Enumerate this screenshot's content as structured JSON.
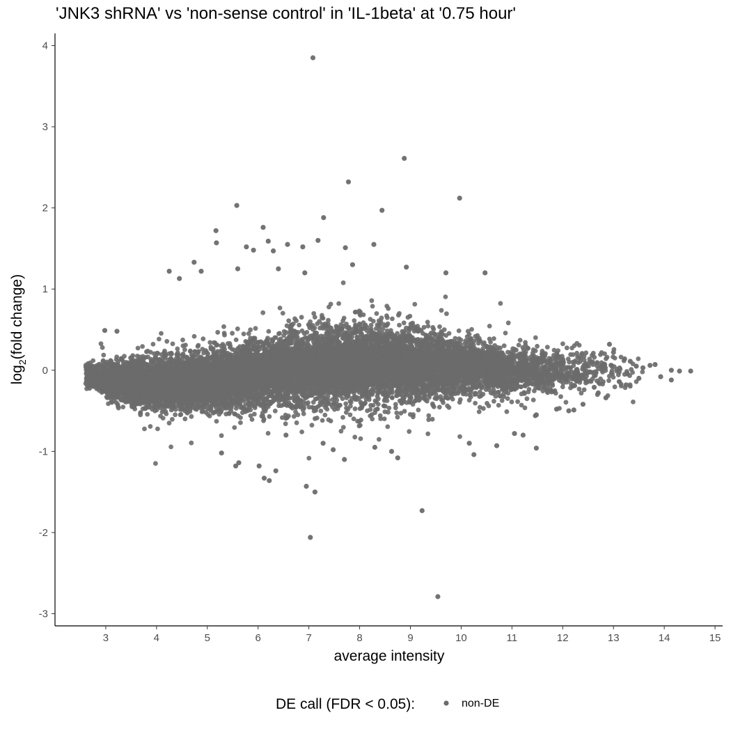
{
  "chart_data": {
    "type": "scatter",
    "title": "'JNK3 shRNA' vs 'non-sense control' in 'IL-1beta' at '0.75 hour'",
    "xlabel": "average intensity",
    "ylabel_main": "log",
    "ylabel_sub": "2",
    "ylabel_rest": "(fold change)",
    "xlim": [
      2,
      15.15
    ],
    "ylim": [
      -3.15,
      4.15
    ],
    "x_ticks": [
      "3",
      "4",
      "5",
      "6",
      "7",
      "8",
      "9",
      "10",
      "11",
      "12",
      "13",
      "14",
      "15"
    ],
    "y_ticks": [
      "-3",
      "-2",
      "-1",
      "0",
      "1",
      "2",
      "3",
      "4"
    ],
    "grid": false,
    "point_color": "#6b6b6b",
    "legend": {
      "title": "DE call (FDR < 0.05):",
      "position": "bottom",
      "entries": [
        {
          "label": "non-DE",
          "color": "#6b6b6b"
        }
      ]
    },
    "series": [
      {
        "name": "non-DE",
        "points": [
          [
            7.08,
            3.85
          ],
          [
            8.88,
            2.61
          ],
          [
            7.78,
            2.32
          ],
          [
            9.97,
            2.12
          ],
          [
            5.58,
            2.03
          ],
          [
            8.44,
            1.97
          ],
          [
            7.29,
            1.88
          ],
          [
            6.1,
            1.76
          ],
          [
            5.17,
            1.72
          ],
          [
            7.18,
            1.6
          ],
          [
            6.2,
            1.59
          ],
          [
            5.18,
            1.57
          ],
          [
            8.28,
            1.55
          ],
          [
            6.58,
            1.55
          ],
          [
            5.77,
            1.52
          ],
          [
            6.88,
            1.52
          ],
          [
            7.72,
            1.51
          ],
          [
            5.91,
            1.48
          ],
          [
            6.3,
            1.47
          ],
          [
            4.74,
            1.33
          ],
          [
            7.86,
            1.3
          ],
          [
            5.6,
            1.25
          ],
          [
            6.4,
            1.25
          ],
          [
            8.92,
            1.27
          ],
          [
            4.25,
            1.22
          ],
          [
            4.88,
            1.22
          ],
          [
            10.47,
            1.2
          ],
          [
            9.7,
            1.2
          ],
          [
            4.45,
            1.13
          ],
          [
            6.92,
            1.2
          ],
          [
            2.98,
            0.49
          ],
          [
            3.22,
            0.48
          ],
          [
            5.28,
            -1.02
          ],
          [
            5.56,
            -1.18
          ],
          [
            5.62,
            -1.14
          ],
          [
            6.02,
            -1.18
          ],
          [
            6.12,
            -1.33
          ],
          [
            6.22,
            -1.36
          ],
          [
            6.35,
            -1.24
          ],
          [
            6.95,
            -1.43
          ],
          [
            7.12,
            -1.5
          ],
          [
            7.03,
            -2.06
          ],
          [
            9.23,
            -1.73
          ],
          [
            9.54,
            -2.79
          ],
          [
            7.28,
            -0.9
          ],
          [
            7.48,
            -0.98
          ],
          [
            7.7,
            -1.1
          ],
          [
            8.3,
            -0.95
          ],
          [
            8.63,
            -1.0
          ],
          [
            8.75,
            -1.08
          ],
          [
            10.16,
            -0.9
          ],
          [
            10.25,
            -1.04
          ],
          [
            11.05,
            -0.78
          ],
          [
            11.22,
            -0.8
          ],
          [
            10.7,
            -0.93
          ],
          [
            11.48,
            -0.96
          ],
          [
            6.55,
            -0.8
          ],
          [
            12.92,
            0.32
          ],
          [
            13.0,
            0.22
          ],
          [
            13.22,
            0.14
          ],
          [
            13.33,
            0.11
          ],
          [
            13.45,
            0.05
          ],
          [
            13.58,
            0.03
          ],
          [
            13.72,
            0.06
          ],
          [
            13.82,
            0.07
          ],
          [
            13.93,
            -0.08
          ],
          [
            14.14,
            0.0
          ],
          [
            14.3,
            -0.01
          ],
          [
            14.52,
            -0.01
          ],
          [
            14.14,
            -0.12
          ],
          [
            13.5,
            -0.1
          ],
          [
            13.25,
            -0.18
          ],
          [
            12.7,
            -0.28
          ],
          [
            12.85,
            -0.34
          ],
          [
            12.62,
            -0.21
          ],
          [
            12.12,
            -0.5
          ],
          [
            12.22,
            -0.49
          ],
          [
            12.4,
            -0.42
          ],
          [
            11.48,
            -0.55
          ],
          [
            11.88,
            -0.48
          ]
        ],
        "density_model": {
          "description": "Dense non-DE cloud; center band (mean log2FC) and spread (sd) per average intensity",
          "n_points": 13000,
          "x_range": [
            2.6,
            13.6
          ],
          "mean_curve": [
            [
              2.6,
              -0.05
            ],
            [
              3.0,
              -0.12
            ],
            [
              4.0,
              -0.17
            ],
            [
              5.0,
              -0.13
            ],
            [
              6.0,
              -0.05
            ],
            [
              7.0,
              0.04
            ],
            [
              8.0,
              0.08
            ],
            [
              9.0,
              0.07
            ],
            [
              10.0,
              0.03
            ],
            [
              11.0,
              0.0
            ],
            [
              12.0,
              0.0
            ],
            [
              13.0,
              0.0
            ]
          ],
          "sd_curve": [
            [
              2.6,
              0.07
            ],
            [
              3.0,
              0.1
            ],
            [
              4.0,
              0.14
            ],
            [
              5.0,
              0.16
            ],
            [
              6.0,
              0.19
            ],
            [
              7.0,
              0.22
            ],
            [
              8.0,
              0.23
            ],
            [
              9.0,
              0.22
            ],
            [
              10.0,
              0.17
            ],
            [
              11.0,
              0.14
            ],
            [
              12.0,
              0.13
            ],
            [
              13.0,
              0.12
            ]
          ],
          "x_density": [
            [
              2.6,
              0.3
            ],
            [
              3.0,
              1.0
            ],
            [
              4.0,
              1.3
            ],
            [
              5.0,
              1.25
            ],
            [
              6.0,
              1.1
            ],
            [
              7.0,
              1.1
            ],
            [
              8.0,
              1.1
            ],
            [
              9.0,
              1.0
            ],
            [
              10.0,
              0.75
            ],
            [
              11.0,
              0.45
            ],
            [
              12.0,
              0.18
            ],
            [
              13.0,
              0.05
            ],
            [
              13.6,
              0.01
            ]
          ]
        }
      }
    ]
  }
}
